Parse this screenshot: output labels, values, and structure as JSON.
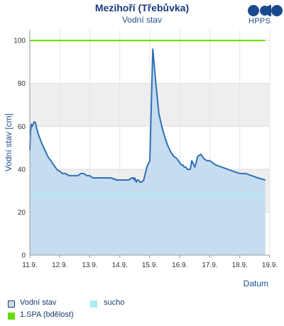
{
  "header": {
    "title": "Mezihoří (Třebůvka)",
    "subtitle": "Vodní stav",
    "logo_text": "HPPS"
  },
  "chart_data": {
    "type": "area",
    "ylabel": "Vodní stav [cm]",
    "xlabel": "Datum",
    "ylim": [
      0,
      105
    ],
    "yticks": [
      0,
      20,
      40,
      60,
      80,
      100
    ],
    "xticks": [
      "11.9.",
      "12.9.",
      "13.9.",
      "14.9.",
      "15.9.",
      "16.9.",
      "17.9.",
      "18.9.",
      "19.9."
    ],
    "xlim": [
      0,
      8
    ],
    "grid": true,
    "bands": [
      {
        "from": 20,
        "to": 40,
        "color": "#eeeeee"
      },
      {
        "from": 60,
        "to": 80,
        "color": "#eeeeee"
      }
    ],
    "series": [
      {
        "name": "Vodní stav",
        "type": "area",
        "color": "#2e70b5",
        "fill": "#c6dcf0",
        "x": [
          0,
          0.02,
          0.05,
          0.08,
          0.11,
          0.14,
          0.17,
          0.2,
          0.23,
          0.27,
          0.32,
          0.4,
          0.5,
          0.6,
          0.7,
          0.8,
          0.9,
          1.0,
          1.1,
          1.2,
          1.3,
          1.4,
          1.5,
          1.6,
          1.7,
          1.8,
          1.9,
          2.0,
          2.1,
          2.2,
          2.3,
          2.5,
          2.7,
          2.9,
          3.0,
          3.1,
          3.2,
          3.3,
          3.4,
          3.45,
          3.48,
          3.5,
          3.52,
          3.55,
          3.58,
          3.62,
          3.67,
          3.72,
          3.8,
          3.9,
          4.0,
          4.1,
          4.2,
          4.3,
          4.4,
          4.5,
          4.6,
          4.7,
          4.8,
          4.9,
          5.0,
          5.05,
          5.1,
          5.15,
          5.2,
          5.25,
          5.3,
          5.35,
          5.4,
          5.5,
          5.6,
          5.7,
          5.8,
          5.9,
          6.0,
          6.2,
          6.4,
          6.6,
          6.8,
          7.0,
          7.2,
          7.4,
          7.6,
          7.85
        ],
        "y": [
          49,
          57,
          61,
          60,
          61,
          62,
          62,
          61,
          59,
          57,
          55,
          52,
          49,
          46,
          44,
          42,
          40,
          39,
          38,
          38,
          37,
          37,
          37,
          37,
          38,
          38,
          37,
          37,
          36,
          36,
          36,
          36,
          36,
          35,
          35,
          35,
          35,
          35,
          36,
          36,
          35,
          36,
          35,
          34,
          35,
          35,
          34,
          34,
          35,
          41,
          44,
          96,
          80,
          66,
          60,
          55,
          51,
          48,
          46,
          45,
          43,
          42,
          42,
          41,
          41,
          40,
          40,
          40,
          44,
          41,
          46,
          47,
          45,
          44,
          44,
          42,
          41,
          40,
          39,
          38,
          38,
          37,
          36,
          35
        ]
      },
      {
        "name": "sucho",
        "type": "hline",
        "value": 28,
        "color": "#a8f0f0"
      },
      {
        "name": "1.SPA (bdělost)",
        "type": "hline",
        "value": 100,
        "color": "#66dd00"
      }
    ],
    "legend": [
      {
        "label": "Vodní stav",
        "color": "#c6dcf0",
        "border": "#2a3f6b"
      },
      {
        "label": "sucho",
        "color": "#a8f0f0",
        "border": "#a8f0f0"
      },
      {
        "label": "1.SPA (bdělost)",
        "color": "#66dd00",
        "border": "#66dd00"
      }
    ],
    "legend_position": "bottom-left"
  }
}
